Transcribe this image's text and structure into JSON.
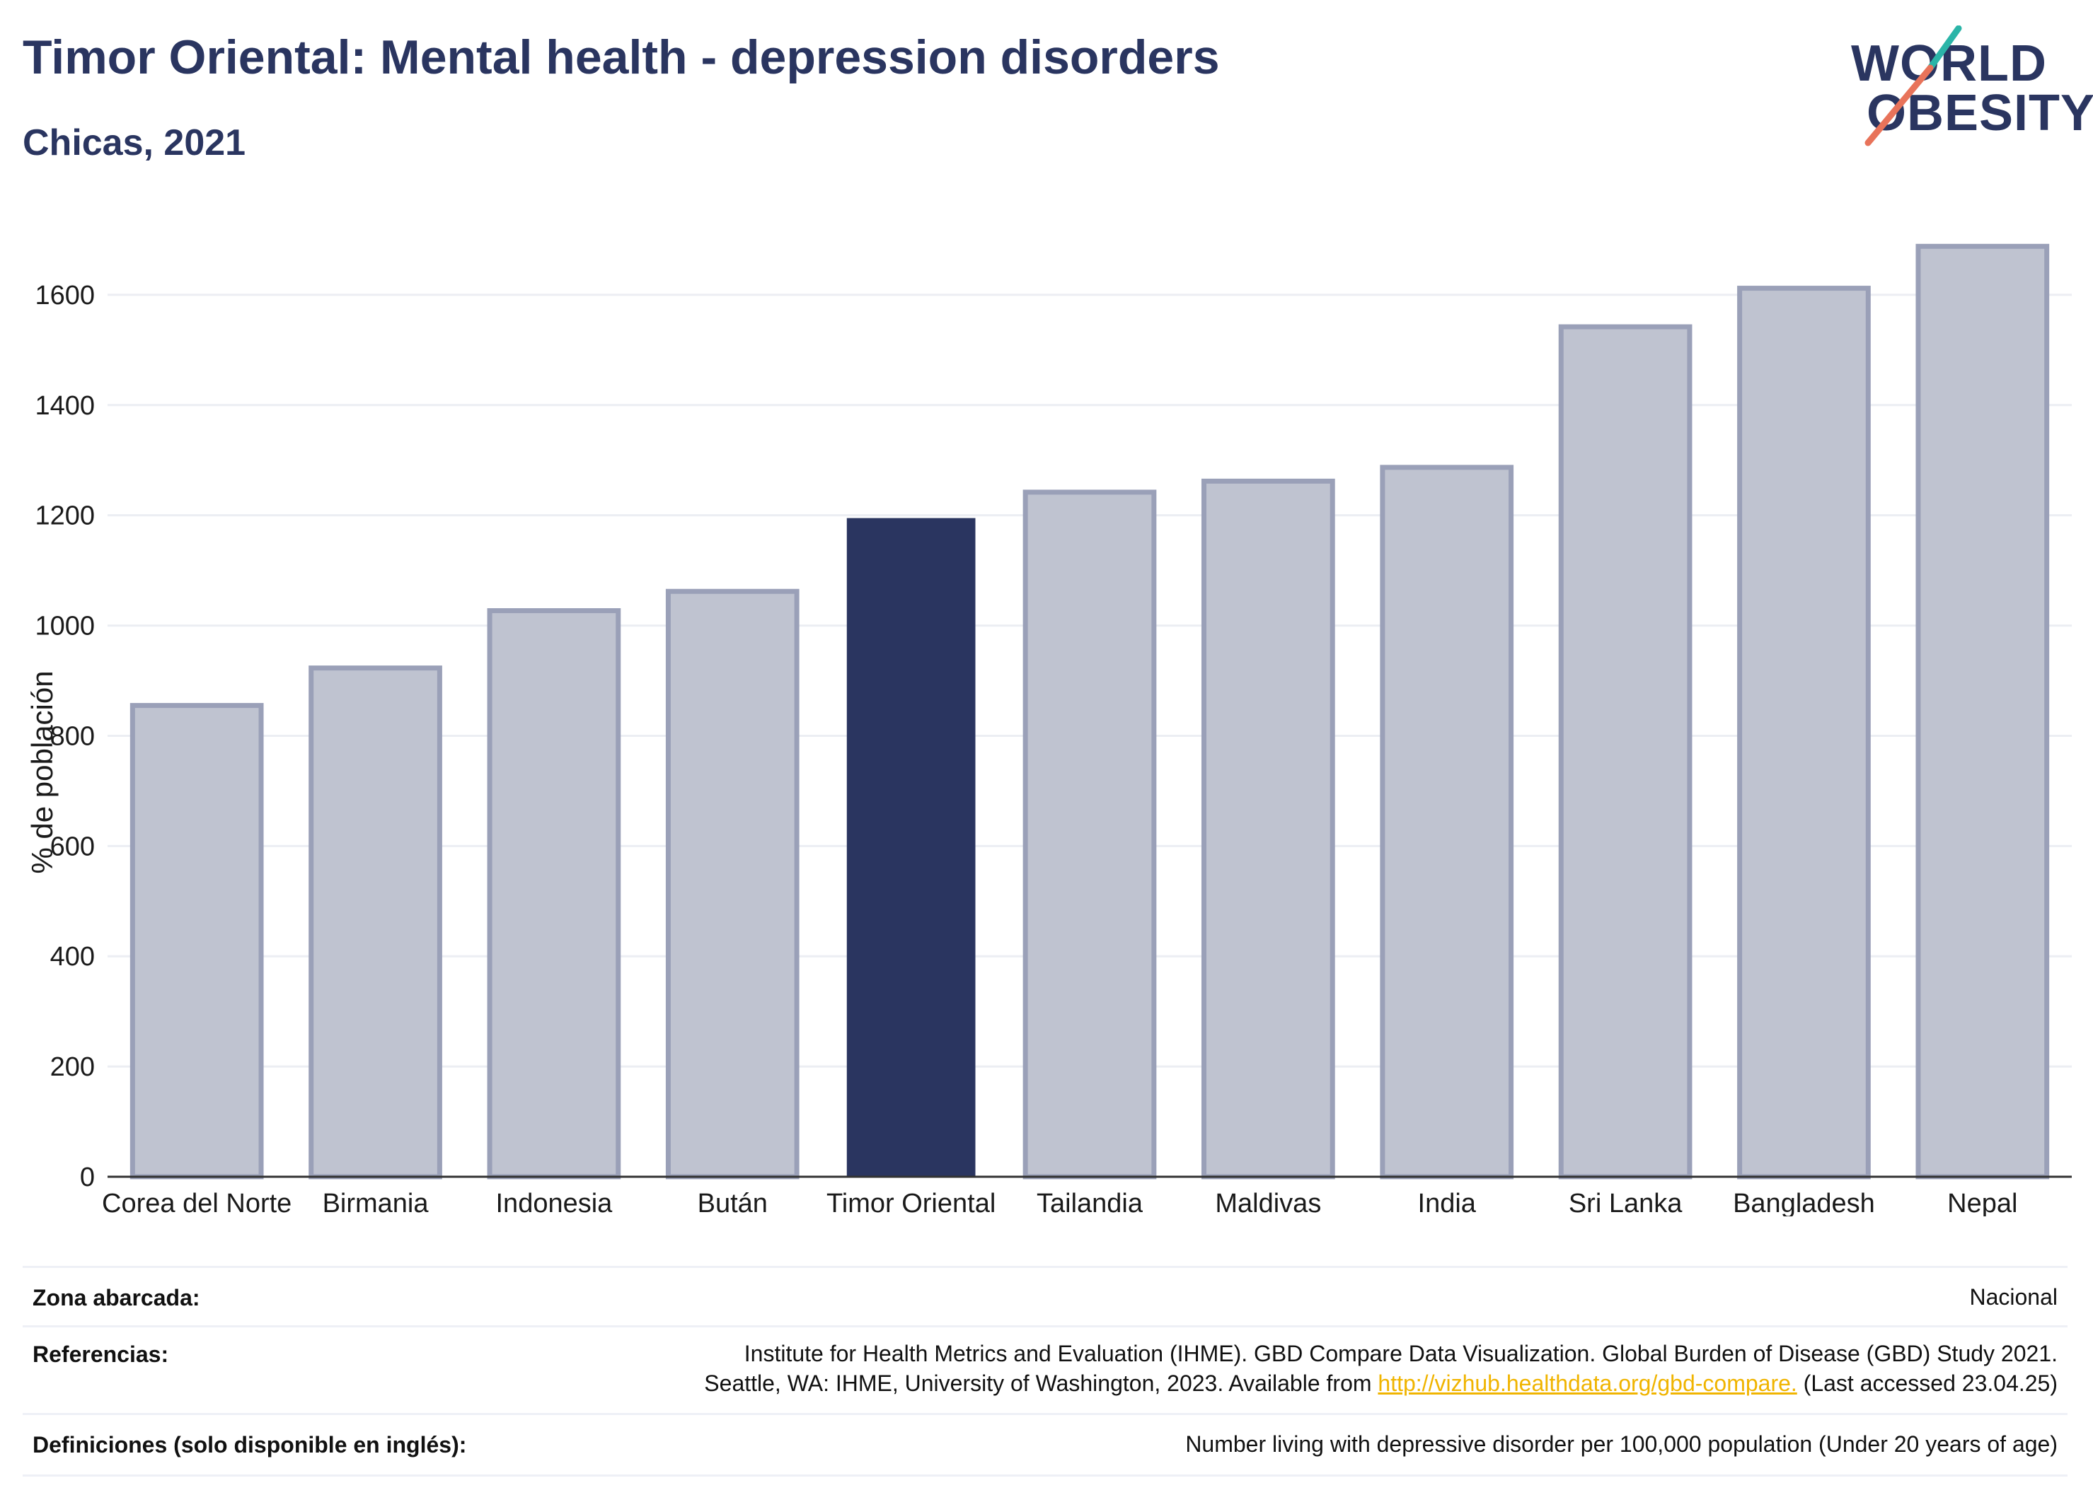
{
  "title": "Timor Oriental: Mental health - depression disorders",
  "subtitle": "Chicas, 2021",
  "logo": {
    "line1": "WORLD",
    "line2": "OBESITY"
  },
  "chart_data": {
    "type": "bar",
    "categories": [
      "Corea del Norte",
      "Birmania",
      "Indonesia",
      "Bután",
      "Timor Oriental",
      "Tailandia",
      "Maldivas",
      "India",
      "Sri Lanka",
      "Bangladesh",
      "Nepal"
    ],
    "values": [
      855,
      923,
      1027,
      1062,
      1195,
      1242,
      1262,
      1287,
      1542,
      1612,
      1688
    ],
    "highlight": "Timor Oriental",
    "ylabel": "% de población",
    "ylim": [
      0,
      1750
    ],
    "yticks": [
      0,
      200,
      400,
      600,
      800,
      1000,
      1200,
      1400,
      1600
    ],
    "grid": true,
    "colors": {
      "bar": "#bfc3d0",
      "bar_border": "#9aa0b8",
      "highlight": "#2a3560",
      "grid": "#eceef3",
      "axis": "#333333"
    }
  },
  "info": {
    "zona_label": "Zona abarcada:",
    "zona_value": "Nacional",
    "ref_label": "Referencias:",
    "ref_line1": "Institute for Health Metrics and Evaluation (IHME). GBD Compare Data Visualization. Global Burden of Disease (GBD) Study 2021.",
    "ref_line2_pre": "Seattle, WA: IHME, University of Washington, 2023. Available from ",
    "ref_link": "http://vizhub.healthdata.org/gbd-compare.",
    "ref_line2_post": " (Last accessed 23.04.25)",
    "def_label": "Definiciones (solo disponible en inglés):",
    "def_value": "Number living with depressive disorder per 100,000 population (Under 20 years of age)"
  }
}
